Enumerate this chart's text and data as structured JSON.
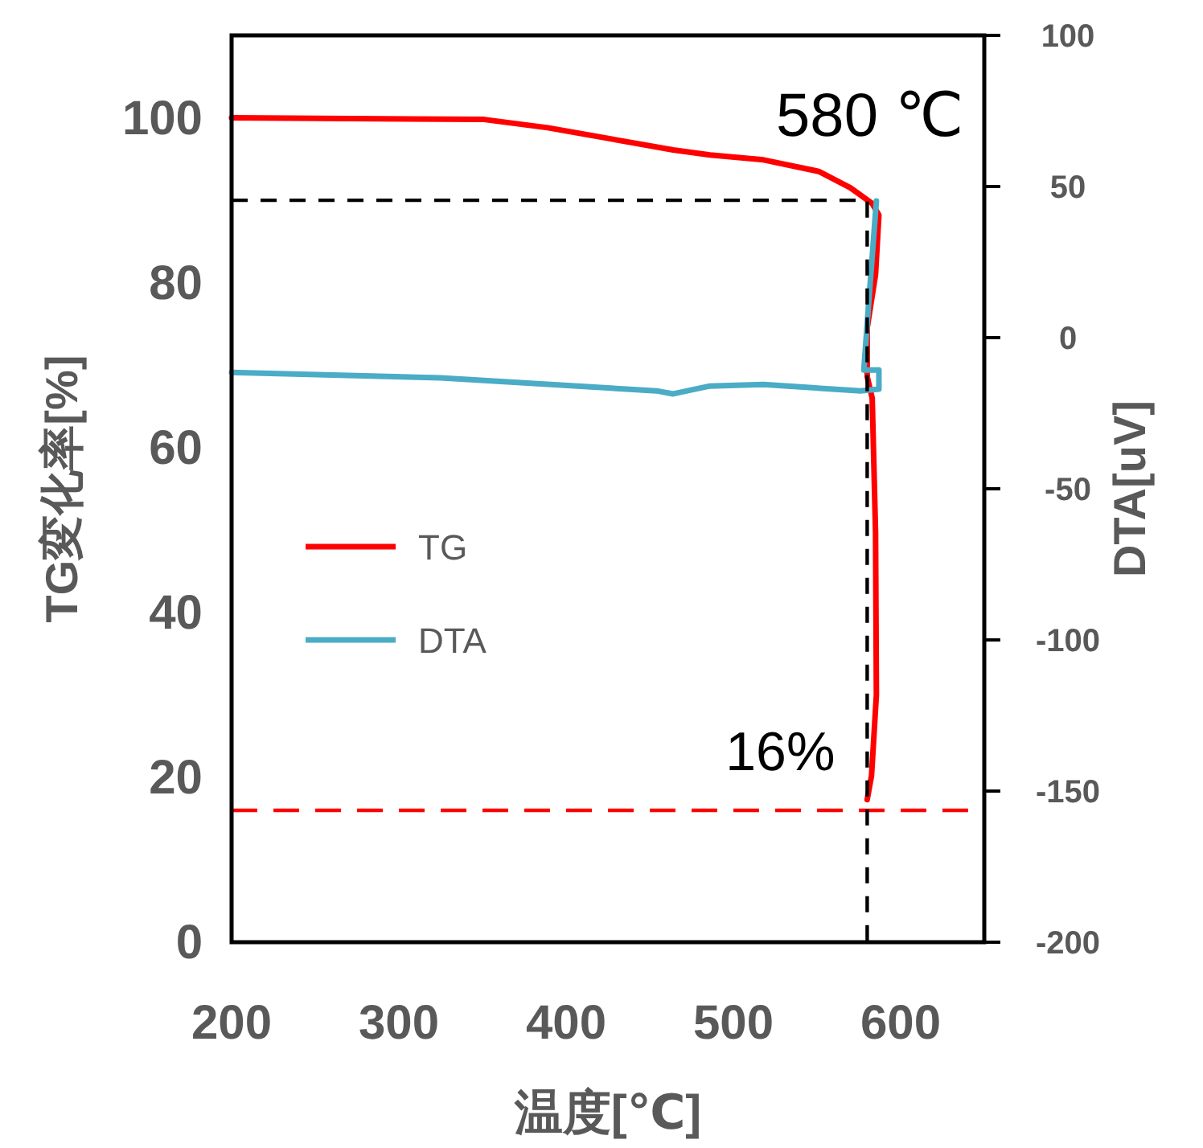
{
  "chart_data": {
    "type": "line",
    "xlabel": "温度[℃]",
    "ylabel": "TG変化率[%]",
    "y2label": "DTA[uV]",
    "xlim": [
      200,
      650
    ],
    "xticks": [
      200,
      300,
      400,
      500,
      600
    ],
    "ylim": [
      0,
      110
    ],
    "yticks": [
      0,
      20,
      40,
      60,
      80,
      100
    ],
    "y2lim": [
      -200,
      100
    ],
    "y2ticks": [
      -200,
      -150,
      -100,
      -50,
      0,
      50,
      100
    ],
    "legend": "left",
    "grid": false,
    "line_style": "solid",
    "marker": "none",
    "series": [
      {
        "name": "TG",
        "color": "#ff0000",
        "x": [
          200,
          351,
          389,
          464,
          486,
          518,
          551,
          570,
          583,
          587,
          585,
          580,
          580,
          583,
          585,
          585.5,
          582.6,
          580
        ],
        "values": [
          100,
          99.8,
          98.8,
          96.1,
          95.5,
          94.9,
          93.5,
          91.5,
          89.6,
          88.2,
          81,
          74.5,
          68.6,
          66,
          49.7,
          30,
          20.2,
          17.3
        ]
      },
      {
        "name": "DTA",
        "color": "#4bacc6",
        "axis": "y2",
        "x": [
          200,
          325,
          454,
          464,
          486,
          518,
          576,
          587,
          587,
          578,
          581,
          585.5
        ],
        "values": [
          -11.5,
          -13.3,
          -17.6,
          -18.6,
          -16,
          -15.5,
          -17.6,
          -17,
          -10.7,
          -10.7,
          12.2,
          45.2
        ]
      },
      {
        "type": "line",
        "color": "#000000",
        "line_style": "dashed",
        "x": [
          200,
          580,
          580
        ],
        "values": [
          90,
          90,
          0
        ]
      }
    ],
    "ref_lines": [
      {
        "axis": "y",
        "value": 16,
        "color": "#ff0000",
        "line_style": "dashed"
      }
    ],
    "annotations": [
      {
        "text": "580 ℃",
        "x": 580,
        "y": 90
      },
      {
        "text": "16%",
        "x": 580,
        "y": 16
      }
    ]
  }
}
